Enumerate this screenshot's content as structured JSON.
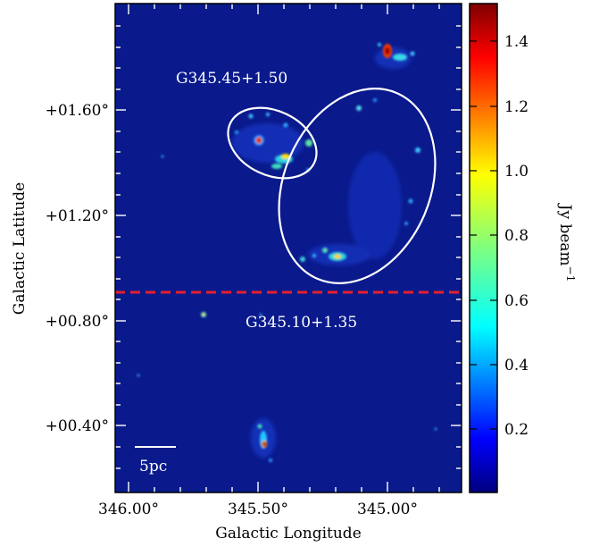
{
  "image": {
    "region_labels": [
      "G345.45+1.50",
      "G345.10+1.35"
    ],
    "scale_bar_label": "5pc",
    "x_axis": {
      "label": "Galactic Longitude",
      "ticks": [
        {
          "value": 346.0,
          "label": "346.00°"
        },
        {
          "value": 345.5,
          "label": "345.50°"
        },
        {
          "value": 345.0,
          "label": "345.00°"
        }
      ]
    },
    "y_axis": {
      "label": "Galactic Latitude",
      "ticks": [
        {
          "value": 1.6,
          "label": "+01.60°"
        },
        {
          "value": 1.2,
          "label": "+01.20°"
        },
        {
          "value": 0.8,
          "label": "+00.80°"
        },
        {
          "value": 0.4,
          "label": "+00.40°"
        }
      ]
    },
    "colorbar": {
      "label_main": "Jy beam",
      "label_exp": "−1",
      "ticks": [
        {
          "value": 1.4,
          "label": "1.4"
        },
        {
          "value": 1.2,
          "label": "1.2"
        },
        {
          "value": 1.0,
          "label": "1.0"
        },
        {
          "value": 0.8,
          "label": "0.8"
        },
        {
          "value": 0.6,
          "label": "0.6"
        },
        {
          "value": 0.4,
          "label": "0.4"
        },
        {
          "value": 0.2,
          "label": "0.2"
        }
      ],
      "range": [
        0.0,
        1.5
      ],
      "colormap": "jet"
    },
    "colors": {
      "background": "#0a1a8c",
      "ellipse_stroke": "#ffffff",
      "dashed_line": "#e8202a"
    }
  }
}
